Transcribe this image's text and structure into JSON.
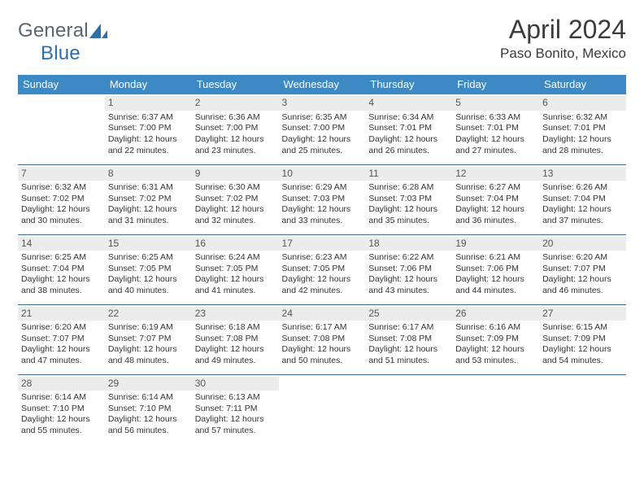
{
  "logo": {
    "text1": "General",
    "text2": "Blue",
    "color1": "#5a6570",
    "color2": "#2f6fa8",
    "shape_color": "#2f6fa8"
  },
  "title": "April 2024",
  "location": "Paso Bonito, Mexico",
  "header_bg": "#3d89c3",
  "header_text_color": "#ffffff",
  "border_color": "#3d6a94",
  "daynum_bg": "#ececec",
  "weekdays": [
    "Sunday",
    "Monday",
    "Tuesday",
    "Wednesday",
    "Thursday",
    "Friday",
    "Saturday"
  ],
  "weeks": [
    [
      null,
      {
        "n": "1",
        "sr": "6:37 AM",
        "ss": "7:00 PM",
        "d1": "12 hours",
        "d2": "and 22 minutes."
      },
      {
        "n": "2",
        "sr": "6:36 AM",
        "ss": "7:00 PM",
        "d1": "12 hours",
        "d2": "and 23 minutes."
      },
      {
        "n": "3",
        "sr": "6:35 AM",
        "ss": "7:00 PM",
        "d1": "12 hours",
        "d2": "and 25 minutes."
      },
      {
        "n": "4",
        "sr": "6:34 AM",
        "ss": "7:01 PM",
        "d1": "12 hours",
        "d2": "and 26 minutes."
      },
      {
        "n": "5",
        "sr": "6:33 AM",
        "ss": "7:01 PM",
        "d1": "12 hours",
        "d2": "and 27 minutes."
      },
      {
        "n": "6",
        "sr": "6:32 AM",
        "ss": "7:01 PM",
        "d1": "12 hours",
        "d2": "and 28 minutes."
      }
    ],
    [
      {
        "n": "7",
        "sr": "6:32 AM",
        "ss": "7:02 PM",
        "d1": "12 hours",
        "d2": "and 30 minutes."
      },
      {
        "n": "8",
        "sr": "6:31 AM",
        "ss": "7:02 PM",
        "d1": "12 hours",
        "d2": "and 31 minutes."
      },
      {
        "n": "9",
        "sr": "6:30 AM",
        "ss": "7:02 PM",
        "d1": "12 hours",
        "d2": "and 32 minutes."
      },
      {
        "n": "10",
        "sr": "6:29 AM",
        "ss": "7:03 PM",
        "d1": "12 hours",
        "d2": "and 33 minutes."
      },
      {
        "n": "11",
        "sr": "6:28 AM",
        "ss": "7:03 PM",
        "d1": "12 hours",
        "d2": "and 35 minutes."
      },
      {
        "n": "12",
        "sr": "6:27 AM",
        "ss": "7:04 PM",
        "d1": "12 hours",
        "d2": "and 36 minutes."
      },
      {
        "n": "13",
        "sr": "6:26 AM",
        "ss": "7:04 PM",
        "d1": "12 hours",
        "d2": "and 37 minutes."
      }
    ],
    [
      {
        "n": "14",
        "sr": "6:25 AM",
        "ss": "7:04 PM",
        "d1": "12 hours",
        "d2": "and 38 minutes."
      },
      {
        "n": "15",
        "sr": "6:25 AM",
        "ss": "7:05 PM",
        "d1": "12 hours",
        "d2": "and 40 minutes."
      },
      {
        "n": "16",
        "sr": "6:24 AM",
        "ss": "7:05 PM",
        "d1": "12 hours",
        "d2": "and 41 minutes."
      },
      {
        "n": "17",
        "sr": "6:23 AM",
        "ss": "7:05 PM",
        "d1": "12 hours",
        "d2": "and 42 minutes."
      },
      {
        "n": "18",
        "sr": "6:22 AM",
        "ss": "7:06 PM",
        "d1": "12 hours",
        "d2": "and 43 minutes."
      },
      {
        "n": "19",
        "sr": "6:21 AM",
        "ss": "7:06 PM",
        "d1": "12 hours",
        "d2": "and 44 minutes."
      },
      {
        "n": "20",
        "sr": "6:20 AM",
        "ss": "7:07 PM",
        "d1": "12 hours",
        "d2": "and 46 minutes."
      }
    ],
    [
      {
        "n": "21",
        "sr": "6:20 AM",
        "ss": "7:07 PM",
        "d1": "12 hours",
        "d2": "and 47 minutes."
      },
      {
        "n": "22",
        "sr": "6:19 AM",
        "ss": "7:07 PM",
        "d1": "12 hours",
        "d2": "and 48 minutes."
      },
      {
        "n": "23",
        "sr": "6:18 AM",
        "ss": "7:08 PM",
        "d1": "12 hours",
        "d2": "and 49 minutes."
      },
      {
        "n": "24",
        "sr": "6:17 AM",
        "ss": "7:08 PM",
        "d1": "12 hours",
        "d2": "and 50 minutes."
      },
      {
        "n": "25",
        "sr": "6:17 AM",
        "ss": "7:08 PM",
        "d1": "12 hours",
        "d2": "and 51 minutes."
      },
      {
        "n": "26",
        "sr": "6:16 AM",
        "ss": "7:09 PM",
        "d1": "12 hours",
        "d2": "and 53 minutes."
      },
      {
        "n": "27",
        "sr": "6:15 AM",
        "ss": "7:09 PM",
        "d1": "12 hours",
        "d2": "and 54 minutes."
      }
    ],
    [
      {
        "n": "28",
        "sr": "6:14 AM",
        "ss": "7:10 PM",
        "d1": "12 hours",
        "d2": "and 55 minutes."
      },
      {
        "n": "29",
        "sr": "6:14 AM",
        "ss": "7:10 PM",
        "d1": "12 hours",
        "d2": "and 56 minutes."
      },
      {
        "n": "30",
        "sr": "6:13 AM",
        "ss": "7:11 PM",
        "d1": "12 hours",
        "d2": "and 57 minutes."
      },
      null,
      null,
      null,
      null
    ]
  ],
  "labels": {
    "sunrise": "Sunrise:",
    "sunset": "Sunset:",
    "daylight": "Daylight:"
  }
}
